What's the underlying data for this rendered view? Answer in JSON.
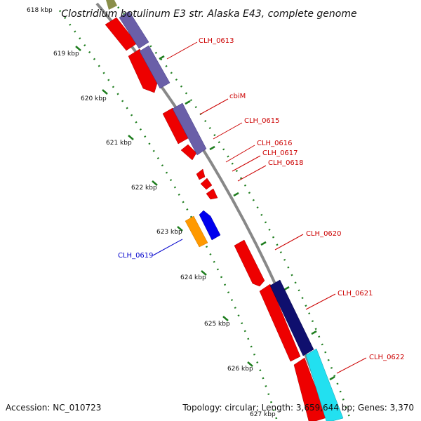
{
  "title": "Clostridium botulinum E3 str. Alaska E43, complete genome",
  "footer": {
    "accession": "Accession: NC_010723",
    "stats": "Topology: circular; Length: 3,659,644 bp; Genes: 3,370"
  },
  "colors": {
    "backbone": "#8a8a8a",
    "tick": "#1e7d1e",
    "label_forward": "#cc0000",
    "label_reverse": "#0000cc"
  },
  "kbp_ticks": [
    {
      "label": "618 kbp"
    },
    {
      "label": "619 kbp"
    },
    {
      "label": "620 kbp"
    },
    {
      "label": "621 kbp"
    },
    {
      "label": "622 kbp"
    },
    {
      "label": "623 kbp"
    },
    {
      "label": "624 kbp"
    },
    {
      "label": "625 kbp"
    },
    {
      "label": "626 kbp"
    },
    {
      "label": "627 kbp"
    }
  ],
  "gene_labels": [
    {
      "label": "CLH_0613",
      "color": "#cc0000"
    },
    {
      "label": "cbiM",
      "color": "#cc0000"
    },
    {
      "label": "CLH_0615",
      "color": "#cc0000"
    },
    {
      "label": "CLH_0616",
      "color": "#cc0000"
    },
    {
      "label": "CLH_0617",
      "color": "#cc0000"
    },
    {
      "label": "CLH_0618",
      "color": "#cc0000"
    },
    {
      "label": "CLH_0619",
      "color": "#0000cc"
    },
    {
      "label": "CLH_0620",
      "color": "#cc0000"
    },
    {
      "label": "CLH_0621",
      "color": "#cc0000"
    },
    {
      "label": "CLH_0622",
      "color": "#cc0000"
    }
  ]
}
